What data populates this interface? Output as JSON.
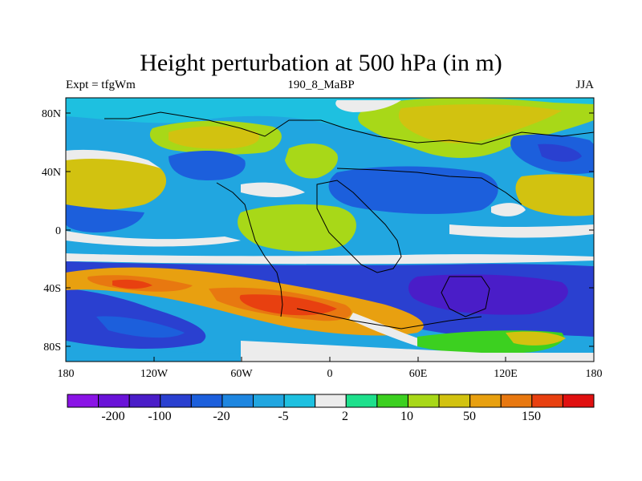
{
  "title": "Height perturbation at 500 hPa (in m)",
  "subtitle_left": "Expt = tfgWm",
  "subtitle_center": "190_8_MaBP",
  "subtitle_right": "JJA",
  "lat_labels": [
    "80N",
    "40N",
    "0",
    "40S",
    "80S"
  ],
  "lon_labels": [
    "180",
    "120W",
    "60W",
    "0",
    "60E",
    "120E",
    "180"
  ],
  "colorbar": {
    "colors": [
      "#8a14e6",
      "#6a13d8",
      "#4a1dc8",
      "#2a40d0",
      "#1c5fdc",
      "#1e86e0",
      "#21a6e0",
      "#1ec0e0",
      "#ececec",
      "#1ee08c",
      "#3cd020",
      "#a8d818",
      "#d2c210",
      "#e8a010",
      "#e87810",
      "#e84010",
      "#e01010"
    ],
    "labels": [
      "-200",
      "-100",
      "-20",
      "-5",
      "2",
      "10",
      "50",
      "150"
    ]
  },
  "map_fields": [
    {
      "name": "background-band-north",
      "color": "#21a6e0"
    },
    {
      "name": "band-equator-yellow",
      "color": "#a8d818"
    },
    {
      "name": "band-south-blue",
      "color": "#2a40d0"
    },
    {
      "name": "band-south-orange",
      "color": "#e8a010"
    },
    {
      "name": "band-south-red",
      "color": "#e84010"
    }
  ]
}
